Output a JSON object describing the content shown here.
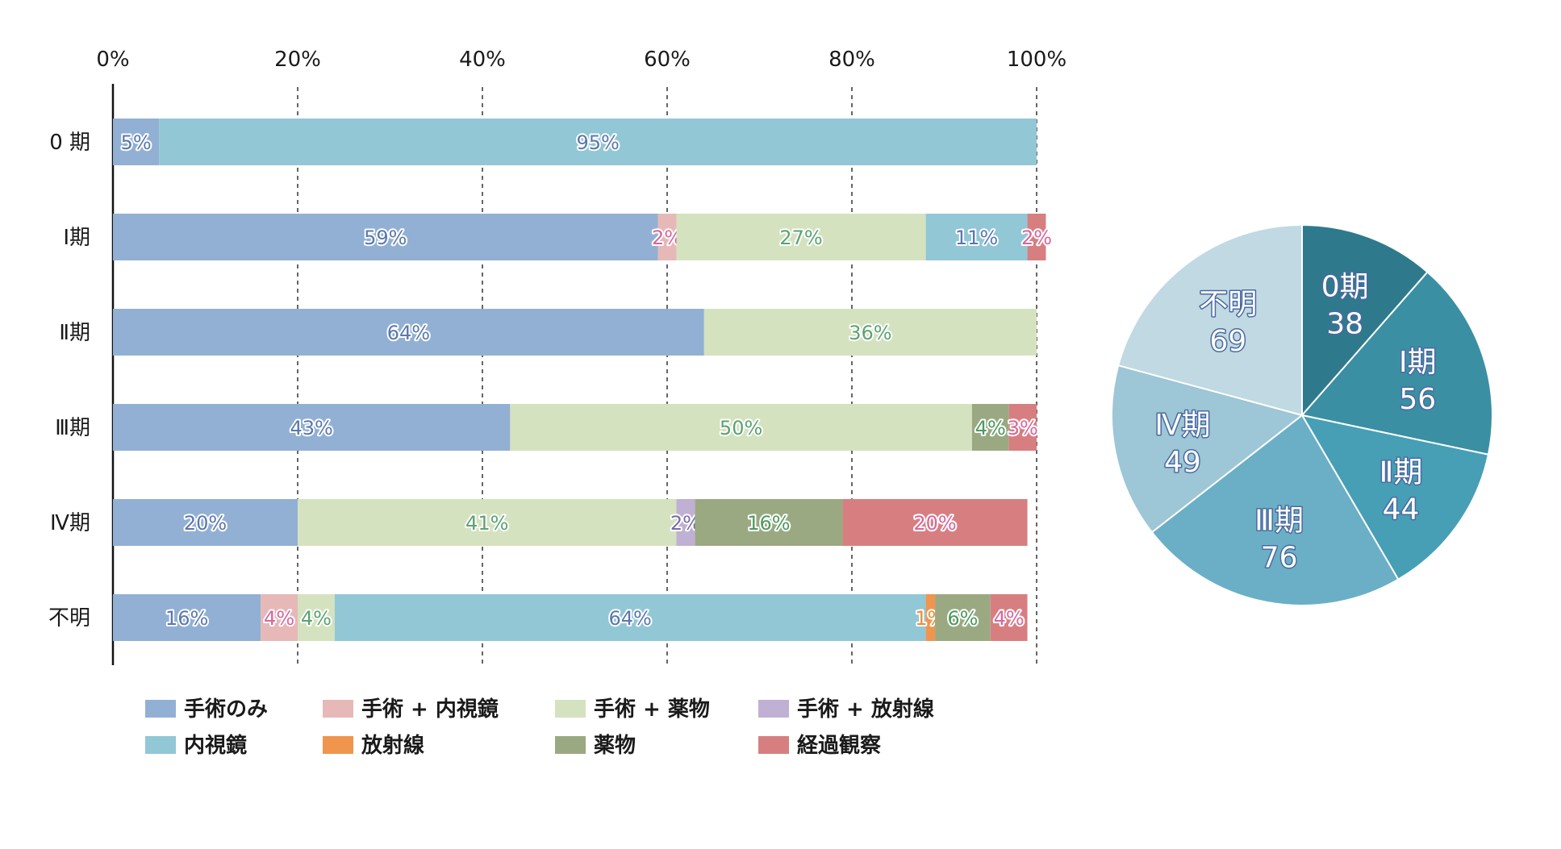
{
  "chart_data": [
    {
      "type": "bar",
      "orientation": "horizontal",
      "stacked": true,
      "percent": true,
      "x_ticks": [
        "0%",
        "20%",
        "40%",
        "60%",
        "80%",
        "100%"
      ],
      "xlim": [
        0,
        100
      ],
      "grid": "vertical dashed",
      "legend_position": "bottom",
      "categories": [
        "0 期",
        "Ⅰ期",
        "Ⅱ期",
        "Ⅲ期",
        "Ⅳ期",
        "不明"
      ],
      "series": [
        {
          "name": "手術のみ",
          "color": "#92b0d3",
          "label_color": "#5a78ad",
          "values": [
            5,
            59,
            64,
            43,
            20,
            16
          ]
        },
        {
          "name": "手術 + 内視鏡",
          "color": "#e6b8b8",
          "label_color": "#d8679a",
          "values": [
            0,
            2,
            0,
            0,
            0,
            4
          ]
        },
        {
          "name": "手術 + 薬物",
          "color": "#d5e2bf",
          "label_color": "#5aa371",
          "values": [
            0,
            27,
            36,
            50,
            41,
            4
          ]
        },
        {
          "name": "手術 + 放射線",
          "color": "#bfb0d4",
          "label_color": "#7a6aa8",
          "values": [
            0,
            0,
            0,
            0,
            2,
            0
          ]
        },
        {
          "name": "内視鏡",
          "color": "#92c7d5",
          "label_color": "#5a78ad",
          "values": [
            95,
            11,
            0,
            0,
            0,
            64
          ]
        },
        {
          "name": "放射線",
          "color": "#f0954d",
          "label_color": "#e8903a",
          "values": [
            0,
            0,
            0,
            0,
            0,
            1
          ]
        },
        {
          "name": "薬物",
          "color": "#9ba983",
          "label_color": "#4f9a60",
          "values": [
            0,
            0,
            0,
            4,
            16,
            6
          ]
        },
        {
          "name": "経過観察",
          "color": "#d77f80",
          "label_color": "#d8679a",
          "values": [
            0,
            2,
            0,
            3,
            20,
            4
          ]
        }
      ],
      "labels": [
        [
          "5%",
          "",
          "",
          "",
          "95%",
          "",
          "",
          ""
        ],
        [
          "59%",
          "2%",
          "27%",
          "",
          "11%",
          "",
          "",
          "2%"
        ],
        [
          "64%",
          "",
          "36%",
          "",
          "",
          "",
          "",
          ""
        ],
        [
          "43%",
          "",
          "50%",
          "",
          "",
          "",
          "4%",
          "3%"
        ],
        [
          "20%",
          "",
          "41%",
          "2%",
          "",
          "",
          "16%",
          "20%"
        ],
        [
          "16%",
          "4%",
          "4%",
          "",
          "64%",
          "1%",
          "6%",
          "4%"
        ]
      ]
    },
    {
      "type": "pie",
      "slices": [
        {
          "label": "0期",
          "value": 38,
          "color": "#2e7a8c"
        },
        {
          "label": "Ⅰ期",
          "value": 56,
          "color": "#3a8fa3"
        },
        {
          "label": "Ⅱ期",
          "value": 44,
          "color": "#469fb5"
        },
        {
          "label": "Ⅲ期",
          "value": 76,
          "color": "#6aafc6"
        },
        {
          "label": "Ⅳ期",
          "value": 49,
          "color": "#9dc6d6"
        },
        {
          "label": "不明",
          "value": 69,
          "color": "#c0d9e3"
        }
      ],
      "label_color": "#4a6aa0"
    }
  ]
}
